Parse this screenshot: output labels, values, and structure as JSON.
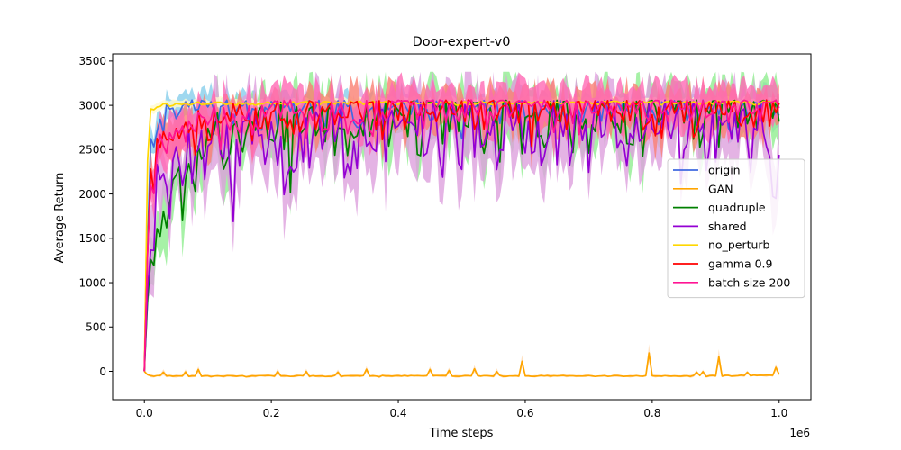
{
  "chart_data": {
    "type": "line",
    "title": "Door-expert-v0",
    "xlabel": "Time steps",
    "ylabel": "Average Return",
    "x_scale_label": "1e6",
    "xlim": [
      -0.05,
      1.05
    ],
    "ylim": [
      -320,
      3580
    ],
    "x_ticks": [
      0.0,
      0.2,
      0.4,
      0.6,
      0.8,
      1.0
    ],
    "x_tick_labels": [
      "0.0",
      "0.2",
      "0.4",
      "0.6",
      "0.8",
      "1.0"
    ],
    "y_ticks": [
      0,
      500,
      1000,
      1500,
      2000,
      2500,
      3000,
      3500
    ],
    "y_tick_labels": [
      "0",
      "500",
      "1000",
      "1500",
      "2000",
      "2500",
      "3000",
      "3500"
    ],
    "grid": false,
    "legend_position": "center-right",
    "series": [
      {
        "name": "origin",
        "color": "#4169e1",
        "band_color": "#87ceeb",
        "draw_order": 0,
        "x": [
          0.0,
          0.003,
          0.006,
          0.01,
          0.02,
          0.05,
          0.1,
          0.2,
          0.3,
          0.4,
          0.5,
          0.6,
          0.7,
          0.8,
          0.9,
          1.0
        ],
        "values": [
          0,
          700,
          1900,
          2500,
          2850,
          2900,
          2950,
          2950,
          2950,
          2980,
          2970,
          2960,
          2980,
          2950,
          2980,
          2980
        ],
        "noise_std": 120,
        "band_half_width": 150
      },
      {
        "name": "GAN",
        "color": "#ffa500",
        "band_color": "#ffdab0",
        "draw_order": 1,
        "x": [
          0.0,
          0.003,
          0.006,
          0.01,
          0.03,
          0.1,
          0.2,
          0.3,
          0.4,
          0.5,
          0.6,
          0.7,
          0.8,
          0.9,
          1.0
        ],
        "values": [
          0,
          -25,
          -48,
          -52,
          -52,
          -55,
          -52,
          -52,
          -52,
          -52,
          -52,
          -52,
          -52,
          -52,
          -40
        ],
        "noise_std": 4,
        "band_half_width": 12,
        "spikes": [
          [
            0.03,
            0
          ],
          [
            0.065,
            -10
          ],
          [
            0.085,
            20
          ],
          [
            0.21,
            -5
          ],
          [
            0.255,
            -5
          ],
          [
            0.305,
            -10
          ],
          [
            0.35,
            20
          ],
          [
            0.45,
            20
          ],
          [
            0.48,
            10
          ],
          [
            0.52,
            30
          ],
          [
            0.555,
            0
          ],
          [
            0.595,
            110
          ],
          [
            0.795,
            210
          ],
          [
            0.87,
            -10
          ],
          [
            0.88,
            -5
          ],
          [
            0.905,
            170
          ],
          [
            0.95,
            -10
          ],
          [
            0.995,
            40
          ]
        ]
      },
      {
        "name": "quadruple",
        "color": "#008000",
        "band_color": "#90ee90",
        "draw_order": 2,
        "x": [
          0.0,
          0.003,
          0.008,
          0.02,
          0.05,
          0.1,
          0.15,
          0.2,
          0.3,
          0.4,
          0.5,
          0.6,
          0.7,
          0.8,
          0.9,
          1.0
        ],
        "values": [
          0,
          500,
          1300,
          1700,
          2200,
          2600,
          2750,
          2800,
          2800,
          2850,
          2850,
          2900,
          2880,
          2900,
          2930,
          2950
        ],
        "noise_std": 240,
        "band_half_width": 300
      },
      {
        "name": "shared",
        "color": "#9400d3",
        "band_color": "#dda0dd",
        "draw_order": 3,
        "x": [
          0.0,
          0.003,
          0.008,
          0.02,
          0.05,
          0.1,
          0.2,
          0.3,
          0.4,
          0.5,
          0.6,
          0.7,
          0.8,
          0.9,
          1.0
        ],
        "values": [
          0,
          600,
          1500,
          2000,
          2300,
          2500,
          2600,
          2650,
          2700,
          2750,
          2750,
          2780,
          2780,
          2800,
          2500
        ],
        "noise_std": 280,
        "band_half_width": 380
      },
      {
        "name": "no_perturb",
        "color": "#ffd700",
        "band_color": "#fffacd",
        "draw_order": 4,
        "x": [
          0.0,
          0.003,
          0.006,
          0.01,
          0.02,
          0.1,
          0.2,
          0.3,
          0.4,
          0.5,
          0.6,
          0.7,
          0.8,
          0.9,
          1.0
        ],
        "values": [
          0,
          1500,
          2800,
          2950,
          3000,
          3020,
          3020,
          3030,
          3030,
          3030,
          3030,
          3030,
          3030,
          3030,
          3030
        ],
        "noise_std": 15,
        "band_half_width": 50
      },
      {
        "name": "gamma 0.9",
        "color": "#ff0000",
        "band_color": "#fa8072",
        "draw_order": 5,
        "x": [
          0.0,
          0.003,
          0.008,
          0.02,
          0.05,
          0.1,
          0.2,
          0.3,
          0.4,
          0.5,
          0.6,
          0.7,
          0.8,
          0.9,
          1.0
        ],
        "values": [
          0,
          900,
          2000,
          2500,
          2600,
          2800,
          2900,
          2950,
          2950,
          2950,
          2950,
          2950,
          2950,
          2950,
          2950
        ],
        "noise_std": 150,
        "band_half_width": 200
      },
      {
        "name": "batch size 200",
        "color": "#ff1493",
        "band_color": "#ff69b4",
        "draw_order": 6,
        "x": [
          0.0,
          0.003,
          0.008,
          0.02,
          0.05,
          0.1,
          0.2,
          0.3,
          0.4,
          0.5,
          0.6,
          0.7,
          0.8,
          0.9,
          1.0
        ],
        "values": [
          0,
          1000,
          2000,
          2500,
          2600,
          2800,
          2950,
          2950,
          2980,
          2980,
          2980,
          2980,
          2980,
          2980,
          2980
        ],
        "noise_std": 140,
        "band_half_width": 220
      }
    ]
  }
}
